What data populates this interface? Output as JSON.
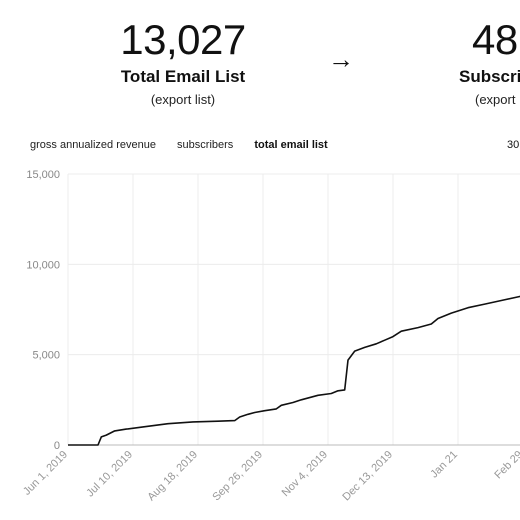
{
  "stats": {
    "left": {
      "value": "13,027",
      "label": "Total Email List",
      "action": "(export list)"
    },
    "right": {
      "value": "48",
      "label": "Subscri",
      "action": "(export"
    },
    "arrow": "→"
  },
  "tabs": [
    {
      "label": "gross annualized revenue",
      "active": false
    },
    {
      "label": "subscribers",
      "active": false
    },
    {
      "label": "total email list",
      "active": true
    }
  ],
  "range_label": "30",
  "chart_data": {
    "type": "line",
    "title": "",
    "xlabel": "",
    "ylabel": "",
    "ylim": [
      0,
      15000
    ],
    "yticks": [
      "0",
      "5,000",
      "10,000",
      "15,000"
    ],
    "yticks_values": [
      0,
      5000,
      10000,
      15000
    ],
    "xticks": [
      "Jun 1, 2019",
      "Jul 10, 2019",
      "Aug 18, 2019",
      "Sep 26, 2019",
      "Nov 4, 2019",
      "Dec 13, 2019",
      "Jan 21",
      "Feb 29"
    ],
    "xticks_values": [
      0,
      39,
      78,
      117,
      156,
      195,
      234,
      273
    ],
    "x_unit": "days from Jun 1, 2019",
    "grid": true,
    "series": [
      {
        "name": "total email list",
        "color": "#111111",
        "x": [
          0,
          18,
          20,
          23,
          28,
          35,
          45,
          60,
          75,
          90,
          100,
          103,
          108,
          112,
          118,
          125,
          128,
          135,
          140,
          150,
          158,
          162,
          166,
          168,
          172,
          178,
          185,
          190,
          195,
          200,
          210,
          218,
          222,
          230,
          240,
          250,
          260,
          270,
          275
        ],
        "y": [
          0,
          0,
          450,
          550,
          780,
          880,
          1000,
          1180,
          1280,
          1320,
          1350,
          1550,
          1700,
          1800,
          1900,
          2000,
          2200,
          2350,
          2500,
          2750,
          2850,
          3000,
          3050,
          4700,
          5200,
          5400,
          5600,
          5800,
          6000,
          6300,
          6500,
          6700,
          7000,
          7300,
          7600,
          7800,
          8000,
          8200,
          8300
        ]
      }
    ]
  }
}
